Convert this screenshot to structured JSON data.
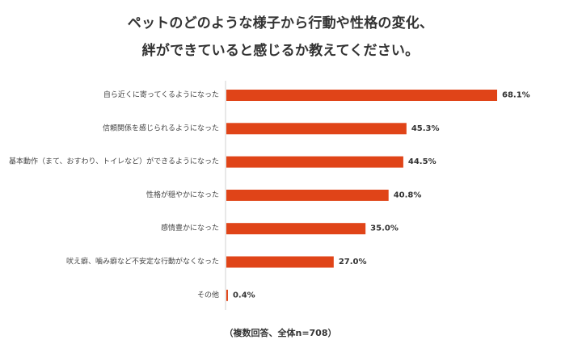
{
  "title_lines": [
    "ペットのどのような様子から行動や性格の変化、",
    "絆ができていると感じるか教えてください。"
  ],
  "footnote": "（複数回答、全体n=708）",
  "colors": {
    "bar": "#e04418",
    "axis": "#d0d0d0"
  },
  "chart_data": {
    "type": "bar",
    "orientation": "horizontal",
    "title": "ペットのどのような様子から行動や性格の変化、絆ができていると感じるか教えてください。",
    "categories": [
      "自ら近くに寄ってくるようになった",
      "信頼関係を感じられるようになった",
      "基本動作（まて、おすわり、トイレなど）ができるようになった",
      "性格が穏やかになった",
      "感情豊かになった",
      "吠え癖、噛み癖など不安定な行動がなくなった",
      "その他"
    ],
    "values": [
      68.1,
      45.3,
      44.5,
      40.8,
      35.0,
      27.0,
      0.4
    ],
    "value_labels": [
      "68.1%",
      "45.3%",
      "44.5%",
      "40.8%",
      "35.0%",
      "27.0%",
      "0.4%"
    ],
    "xlim": [
      0,
      100
    ],
    "grid": false,
    "legend": "none"
  }
}
